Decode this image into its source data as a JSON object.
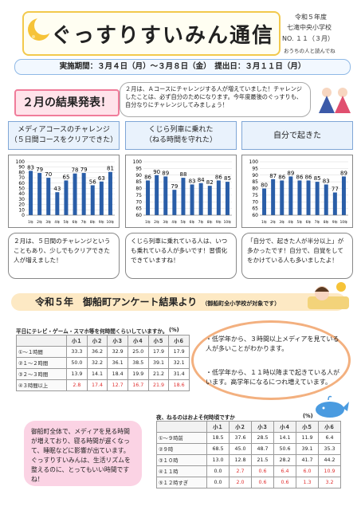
{
  "header": {
    "title": "ぐっすりすいみん通信",
    "era": "令和５年度",
    "school": "七滝中央小学校",
    "issue": "NO. １１（３月）",
    "read_note": "おうちの人と読んでね"
  },
  "period": {
    "text": "実施期間：３月４日（月）～３月８日（金）　提出日：３月１１日（月）"
  },
  "results": {
    "title": "２月の結果発表！",
    "note": "２月は、Ａコースにチャレンジする人が増えていました！チャレンジしたことは、必ず自分のためになります。今年度最後のぐっすりも、自分なりにチャレンジしてみましょう！"
  },
  "charts": [
    {
      "heading_line1": "メディアコースのチャレンジ",
      "heading_line2": "（５日間コースをクリアできた）",
      "comment": "２月は、５日間のチャレンジということもあり、少しでもクリアできた人が増えました！",
      "chart_data": {
        "type": "bar",
        "categories": [
          "1年",
          "2年",
          "3年",
          "4年",
          "5年",
          "6年",
          "7年",
          "8年",
          "9年",
          "10年"
        ],
        "values": [
          83,
          79,
          70,
          43,
          65,
          78,
          79,
          56,
          63,
          81
        ],
        "ylim": [
          0,
          100
        ],
        "yticks": [
          "0",
          "10",
          "20",
          "30",
          "40",
          "50",
          "60",
          "70",
          "80",
          "90",
          "100"
        ]
      }
    },
    {
      "heading_line1": "くじら列車に乗れた",
      "heading_line2": "（ねる時間を守れた）",
      "comment": "くじら列車に乗れている人は、いつも乗れている人が多いです！習慣化できていますね！",
      "chart_data": {
        "type": "bar",
        "categories": [
          "1年",
          "2年",
          "3年",
          "4年",
          "5年",
          "6年",
          "7年",
          "8年",
          "9年",
          "10年"
        ],
        "values": [
          86,
          90,
          89,
          79,
          88,
          83,
          84,
          82,
          86,
          85
        ],
        "ylim": [
          60,
          100
        ],
        "yticks": [
          "60",
          "65",
          "70",
          "75",
          "80",
          "85",
          "90",
          "95",
          "100"
        ]
      }
    },
    {
      "heading_line1": "自分で起きた",
      "heading_line2": "",
      "comment": "「自分で、起きた人が半分以上」が多かったです！自分で、自覚をしてをかけている人も多いましたよ！",
      "chart_data": {
        "type": "bar",
        "categories": [
          "1年",
          "2年",
          "3年",
          "4年",
          "5年",
          "6年",
          "7年",
          "8年",
          "9年",
          "10年"
        ],
        "values": [
          80,
          87,
          86,
          89,
          86,
          86,
          85,
          83,
          77,
          89
        ],
        "ylim": [
          60,
          100
        ],
        "yticks": [
          "60",
          "65",
          "70",
          "75",
          "80",
          "85",
          "90",
          "95",
          "100"
        ]
      }
    }
  ],
  "survey": {
    "title": "令和５年　御船町アンケート結果より",
    "subtitle": "（御船町全小学校が対象です）",
    "table1": {
      "caption": "平日にテレビ・ゲーム・スマホ等を何時間くらいしていますか。",
      "unit": "(%)",
      "headers": [
        "",
        "小１",
        "小２",
        "小３",
        "小４",
        "小５",
        "小６"
      ],
      "rows": [
        {
          "label": "①～１時間",
          "values": [
            "33.3",
            "36.2",
            "32.9",
            "25.0",
            "17.9",
            "17.9"
          ],
          "hl": []
        },
        {
          "label": "②１～２時間",
          "values": [
            "50.0",
            "32.2",
            "36.1",
            "38.5",
            "39.1",
            "32.1"
          ],
          "hl": []
        },
        {
          "label": "③２～３時間",
          "values": [
            "13.9",
            "14.1",
            "18.4",
            "19.9",
            "21.2",
            "31.4"
          ],
          "hl": []
        },
        {
          "label": "④３時間以上",
          "values": [
            "2.8",
            "17.4",
            "12.7",
            "16.7",
            "21.9",
            "18.6"
          ],
          "hl": [
            0,
            1,
            2,
            3,
            4,
            5
          ]
        }
      ]
    },
    "findings": [
      "・低学年から、３時間以上メディアを見ている人が多いことがわかります。",
      "・低学年から、１１時以降まで起きている人がいます。高学年になるにつれ増えています。"
    ],
    "table2": {
      "caption": "夜、ねるのはおよそ何時頃ですか",
      "unit": "(%)",
      "headers": [
        "",
        "小１",
        "小２",
        "小３",
        "小４",
        "小５",
        "小６"
      ],
      "rows": [
        {
          "label": "①～９時前",
          "values": [
            "18.5",
            "37.6",
            "28.5",
            "14.1",
            "11.9",
            "6.4"
          ],
          "hl": []
        },
        {
          "label": "②９時",
          "values": [
            "68.5",
            "45.0",
            "48.7",
            "50.6",
            "39.1",
            "35.3"
          ],
          "hl": []
        },
        {
          "label": "③１０時",
          "values": [
            "13.0",
            "12.8",
            "21.5",
            "28.2",
            "41.7",
            "44.2"
          ],
          "hl": []
        },
        {
          "label": "④１１時",
          "values": [
            "0.0",
            "2.7",
            "0.6",
            "6.4",
            "6.0",
            "10.9"
          ],
          "hl": [
            1,
            2,
            3,
            4,
            5
          ]
        },
        {
          "label": "⑤１２時すぎ",
          "values": [
            "0.0",
            "2.0",
            "0.6",
            "0.6",
            "1.3",
            "3.2"
          ],
          "hl": [
            1,
            2,
            3,
            4,
            5
          ]
        }
      ]
    },
    "note": "御船町全体で、メディアを見る時間が増えており、寝る時間が遅くなって、睡眠などに影響が出ています。ぐっすりすいみんは、生活リズムを整えるのに、とってもいい時間ですね！"
  },
  "colors": {
    "bar": "#2a5ea8",
    "accent_pink": "#f07c9a",
    "accent_orange": "#f3b07f",
    "highlight_red": "#e03030"
  }
}
